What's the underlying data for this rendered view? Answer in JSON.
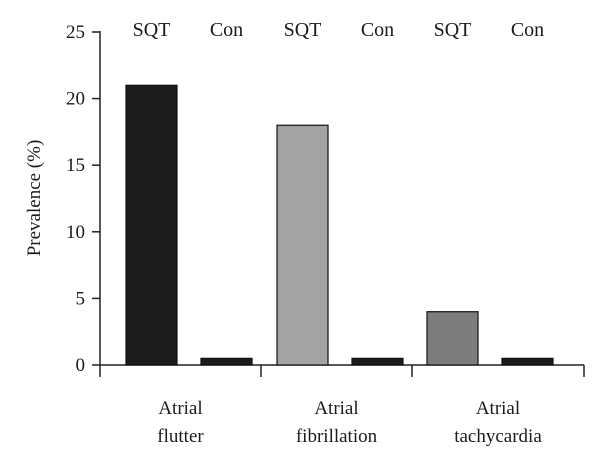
{
  "chart_data": {
    "type": "bar",
    "title": "",
    "ylabel": "Prevalence (%)",
    "xlabel": "",
    "ylim": [
      0,
      25
    ],
    "yticks": [
      0,
      5,
      10,
      15,
      20,
      25
    ],
    "grid": false,
    "categories": [
      {
        "lines": [
          "Atrial",
          "flutter"
        ]
      },
      {
        "lines": [
          "Atrial",
          "fibrillation"
        ]
      },
      {
        "lines": [
          "Atrial",
          "tachycardia"
        ]
      }
    ],
    "bars": [
      {
        "group": 0,
        "label": "SQT",
        "value": 21,
        "color": "#1c1c1c"
      },
      {
        "group": 0,
        "label": "Con",
        "value": 0.5,
        "color": "#1c1c1c"
      },
      {
        "group": 1,
        "label": "SQT",
        "value": 18,
        "color": "#a3a3a3"
      },
      {
        "group": 1,
        "label": "Con",
        "value": 0.5,
        "color": "#1c1c1c"
      },
      {
        "group": 2,
        "label": "SQT",
        "value": 4,
        "color": "#7d7d7d"
      },
      {
        "group": 2,
        "label": "Con",
        "value": 0.5,
        "color": "#1c1c1c"
      }
    ]
  }
}
